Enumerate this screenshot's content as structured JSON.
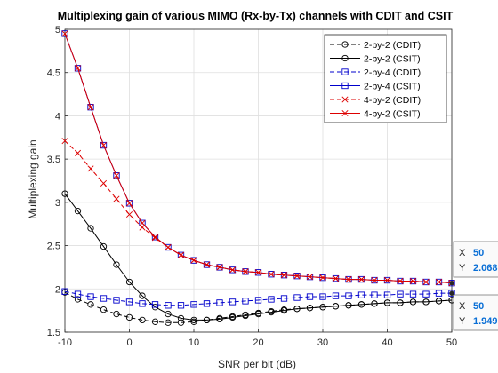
{
  "chart_data": {
    "type": "line",
    "title": "Multiplexing gain of various MIMO (Rx-by-Tx) channels with CDIT and CSIT",
    "xlabel": "SNR per bit (dB)",
    "ylabel": "Multiplexing gain",
    "xlim": [
      -10,
      50
    ],
    "ylim": [
      1.5,
      5
    ],
    "xticks": [
      -10,
      0,
      10,
      20,
      30,
      40,
      50
    ],
    "yticks": [
      1.5,
      2,
      2.5,
      3,
      3.5,
      4,
      4.5,
      5
    ],
    "xtick_labels": [
      "-10",
      "0",
      "10",
      "20",
      "30",
      "40",
      "50"
    ],
    "ytick_labels": [
      "1.5",
      "2",
      "2.5",
      "3",
      "3.5",
      "4",
      "4.5",
      "5"
    ],
    "grid": true,
    "legend_position": "top-right",
    "x": [
      -10,
      -8,
      -6,
      -4,
      -2,
      0,
      2,
      4,
      6,
      8,
      10,
      12,
      14,
      16,
      18,
      20,
      22,
      24,
      26,
      28,
      30,
      32,
      34,
      36,
      38,
      40,
      42,
      44,
      46,
      48,
      50
    ],
    "series": [
      {
        "name": "2-by-2 (CDIT)",
        "color": "#000000",
        "line": "dashed",
        "marker": "circle",
        "values": [
          1.96,
          1.88,
          1.82,
          1.76,
          1.71,
          1.67,
          1.64,
          1.62,
          1.61,
          1.61,
          1.62,
          1.64,
          1.66,
          1.68,
          1.7,
          1.72,
          1.74,
          1.76,
          1.77,
          1.78,
          1.79,
          1.8,
          1.81,
          1.82,
          1.83,
          1.84,
          1.84,
          1.85,
          1.85,
          1.86,
          1.87
        ]
      },
      {
        "name": "2-by-2 (CSIT)",
        "color": "#000000",
        "line": "solid",
        "marker": "circle",
        "values": [
          3.1,
          2.9,
          2.7,
          2.49,
          2.28,
          2.08,
          1.92,
          1.79,
          1.71,
          1.66,
          1.64,
          1.64,
          1.65,
          1.67,
          1.69,
          1.71,
          1.73,
          1.75,
          1.77,
          1.78,
          1.79,
          1.8,
          1.81,
          1.82,
          1.83,
          1.84,
          1.84,
          1.85,
          1.85,
          1.86,
          1.87
        ]
      },
      {
        "name": "2-by-4 (CDIT)",
        "color": "#0000cc",
        "line": "dashed",
        "marker": "square",
        "values": [
          1.97,
          1.94,
          1.91,
          1.89,
          1.87,
          1.85,
          1.83,
          1.82,
          1.81,
          1.81,
          1.82,
          1.83,
          1.84,
          1.85,
          1.86,
          1.87,
          1.88,
          1.89,
          1.9,
          1.91,
          1.91,
          1.92,
          1.92,
          1.93,
          1.93,
          1.93,
          1.94,
          1.94,
          1.94,
          1.95,
          1.95
        ]
      },
      {
        "name": "2-by-4 (CSIT)",
        "color": "#0000cc",
        "line": "solid",
        "marker": "square",
        "values": [
          4.95,
          4.55,
          4.1,
          3.66,
          3.31,
          2.99,
          2.76,
          2.6,
          2.48,
          2.39,
          2.33,
          2.28,
          2.25,
          2.22,
          2.2,
          2.19,
          2.17,
          2.16,
          2.15,
          2.14,
          2.13,
          2.12,
          2.11,
          2.11,
          2.1,
          2.1,
          2.09,
          2.09,
          2.08,
          2.08,
          2.068
        ]
      },
      {
        "name": "4-by-2 (CDIT)",
        "color": "#dd0000",
        "line": "dashed",
        "marker": "x",
        "values": [
          3.71,
          3.57,
          3.39,
          3.22,
          3.04,
          2.86,
          2.71,
          2.59,
          2.48,
          2.39,
          2.33,
          2.28,
          2.25,
          2.22,
          2.2,
          2.19,
          2.17,
          2.16,
          2.15,
          2.14,
          2.13,
          2.12,
          2.11,
          2.11,
          2.1,
          2.1,
          2.09,
          2.09,
          2.08,
          2.08,
          2.068
        ]
      },
      {
        "name": "4-by-2 (CSIT)",
        "color": "#dd0000",
        "line": "solid",
        "marker": "x",
        "values": [
          4.95,
          4.55,
          4.1,
          3.66,
          3.31,
          2.99,
          2.76,
          2.6,
          2.48,
          2.39,
          2.33,
          2.28,
          2.25,
          2.22,
          2.2,
          2.19,
          2.17,
          2.16,
          2.15,
          2.14,
          2.13,
          2.12,
          2.11,
          2.11,
          2.1,
          2.1,
          2.09,
          2.09,
          2.08,
          2.08,
          2.068
        ]
      }
    ],
    "datatips": [
      {
        "x_label": "X",
        "x_value": "50",
        "y_label": "Y",
        "y_value": "2.068",
        "point_x": 50,
        "point_y": 2.068
      },
      {
        "x_label": "X",
        "x_value": "50",
        "y_label": "Y",
        "y_value": "1.949",
        "point_x": 50,
        "point_y": 1.949
      }
    ]
  }
}
